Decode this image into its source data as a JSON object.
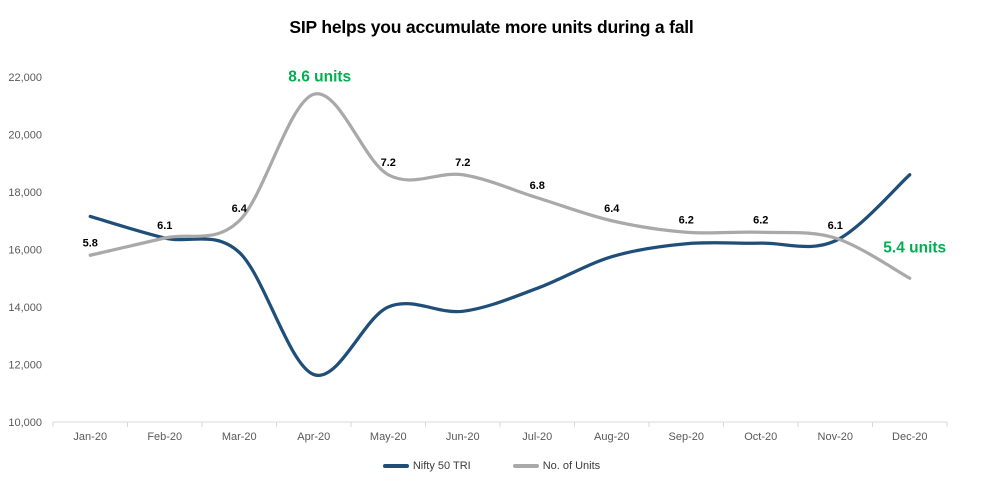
{
  "chart_data": {
    "type": "line",
    "title": "SIP helps you accumulate more units during a fall",
    "categories": [
      "Jan-20",
      "Feb-20",
      "Mar-20",
      "Apr-20",
      "May-20",
      "Jun-20",
      "Jul-20",
      "Aug-20",
      "Sep-20",
      "Oct-20",
      "Nov-20",
      "Dec-20"
    ],
    "y_axis": {
      "min": 10000,
      "max": 22000,
      "step": 2000,
      "tick_labels": [
        "10,000",
        "12,000",
        "14,000",
        "16,000",
        "18,000",
        "20,000",
        "22,000"
      ]
    },
    "units_axis": {
      "hidden": true,
      "min": 2.9,
      "max": 8.9
    },
    "series": [
      {
        "name": "Nifty 50 TRI",
        "color": "#1F4E79",
        "axis": "primary",
        "values": [
          17150,
          16400,
          15900,
          11650,
          14000,
          13850,
          14650,
          15750,
          16200,
          16220,
          16300,
          18600
        ]
      },
      {
        "name": "No. of Units",
        "color": "#A9A9A9",
        "axis": "units",
        "values": [
          5.8,
          6.1,
          6.4,
          8.6,
          7.2,
          7.2,
          6.8,
          6.4,
          6.2,
          6.2,
          6.1,
          5.4
        ],
        "point_labels": [
          "5.8",
          "6.1",
          "6.4",
          null,
          "7.2",
          "7.2",
          "6.8",
          "6.4",
          "6.2",
          "6.2",
          "6.1",
          null
        ]
      }
    ],
    "annotations": [
      {
        "text": "8.6 units",
        "color": "#00B050",
        "point_index": 3
      },
      {
        "text": "5.4 units",
        "color": "#00B050",
        "point_index": 11
      }
    ],
    "legend_position": "bottom",
    "grid": "none",
    "axis_color": "#D9D9D9",
    "axis_text_color": "#595959",
    "label_text_color": "#000000"
  }
}
